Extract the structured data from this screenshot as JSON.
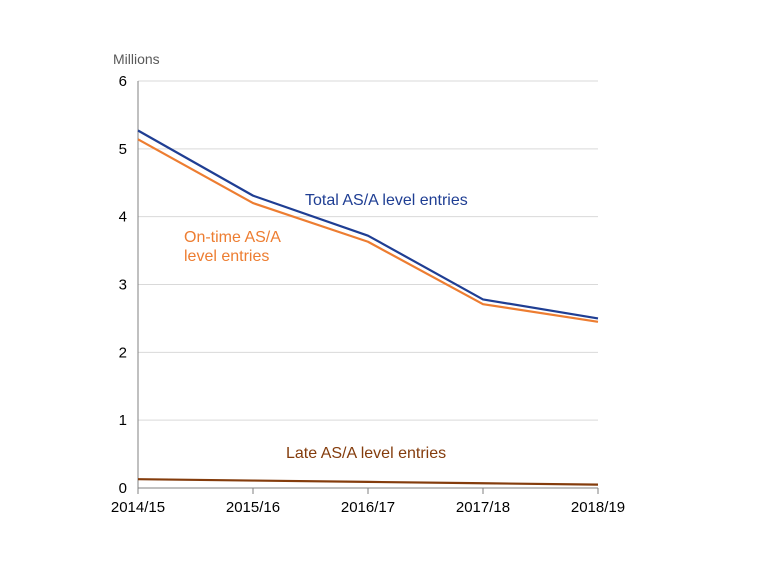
{
  "chart_data": {
    "type": "line",
    "ylabel": "Millions",
    "categories": [
      "2014/15",
      "2015/16",
      "2016/17",
      "2017/18",
      "2018/19"
    ],
    "ylim": [
      0,
      6
    ],
    "yticks": [
      0,
      1,
      2,
      3,
      4,
      5,
      6
    ],
    "grid": true,
    "series": [
      {
        "name": "Total AS/A level entries",
        "values": [
          5.27,
          4.31,
          3.72,
          2.78,
          2.5
        ],
        "color": "#1F3E93"
      },
      {
        "name": "On-time AS/A level entries",
        "label_lines": [
          "On-time AS/A",
          "level entries"
        ],
        "values": [
          5.14,
          4.2,
          3.63,
          2.71,
          2.45
        ],
        "color": "#ED7D31"
      },
      {
        "name": "Late AS/A level entries",
        "values": [
          0.13,
          0.11,
          0.09,
          0.07,
          0.05
        ],
        "color": "#843C0C"
      }
    ]
  }
}
